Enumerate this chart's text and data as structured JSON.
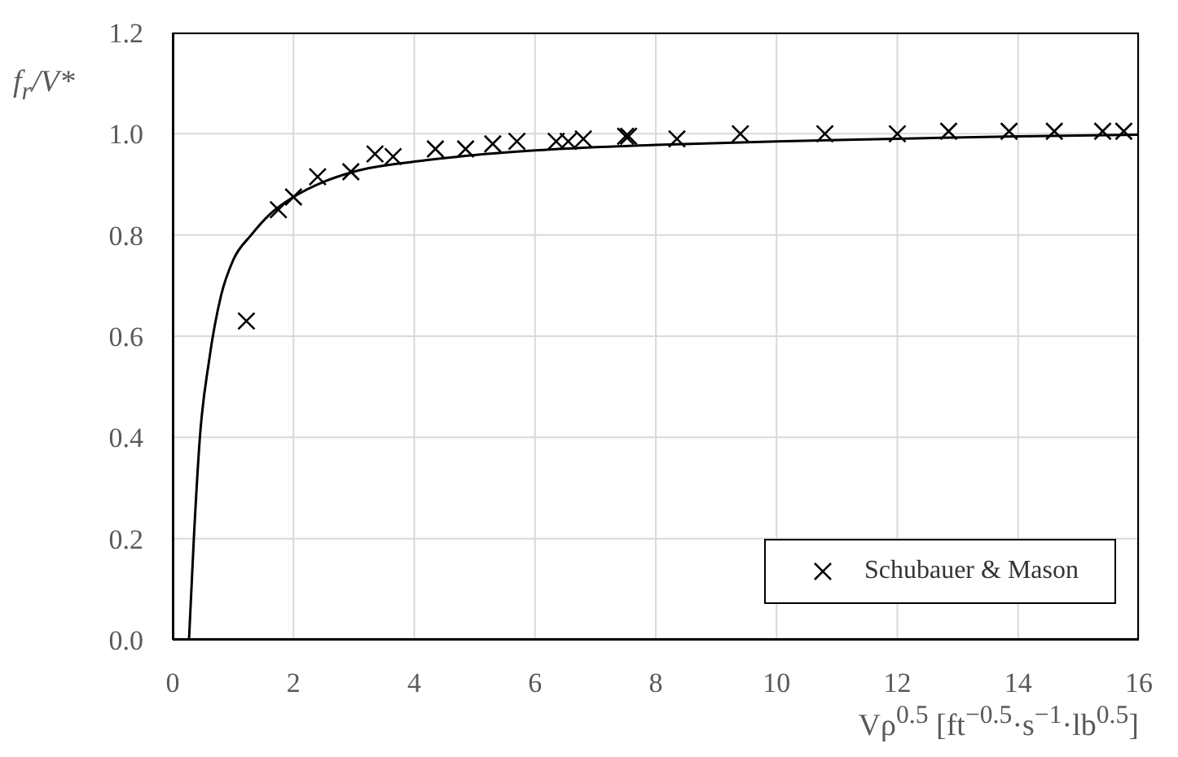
{
  "chart_data": {
    "type": "scatter",
    "xlabel": "Vρ$^{0.5}$ [ft$^{−0.5}$·s$^{−1}$·lb$^{0.5}$]",
    "ylabel": "f$_{r}$/V*",
    "xlim": [
      0,
      16
    ],
    "xticks": [
      0,
      2,
      4,
      6,
      8,
      10,
      12,
      14,
      16
    ],
    "ylim": [
      0,
      1.2
    ],
    "yticks": [
      {
        "value": 0,
        "label": "0.0"
      },
      {
        "value": 0.2,
        "label": "0.2"
      },
      {
        "value": 0.4,
        "label": "0.4"
      },
      {
        "value": 0.6,
        "label": "0.6"
      },
      {
        "value": 0.8,
        "label": "0.8"
      },
      {
        "value": 1,
        "label": "1.0"
      },
      {
        "value": 1.2,
        "label": "1.2"
      }
    ],
    "grid": true,
    "legend": "bottom right",
    "series": [
      {
        "type": "line",
        "color": "#000000",
        "line_style": "solid",
        "marker": "none",
        "x": [
          0.27,
          0.35,
          0.45,
          0.6,
          0.8,
          1.0,
          1.3,
          1.6,
          2,
          2.5,
          3,
          4,
          5,
          6,
          8,
          10,
          12,
          14,
          16
        ],
        "values": [
          0,
          0.2,
          0.4,
          0.55,
          0.68,
          0.75,
          0.8,
          0.84,
          0.875,
          0.905,
          0.925,
          0.945,
          0.958,
          0.967,
          0.978,
          0.985,
          0.99,
          0.995,
          0.998
        ]
      },
      {
        "name": "Schubauer & Mason",
        "color": "#000000",
        "marker": "cross",
        "x": [
          1.22,
          1.75,
          2.0,
          2.4,
          2.95,
          3.35,
          3.65,
          4.35,
          4.85,
          5.3,
          5.7,
          6.35,
          6.55,
          6.8,
          7.5,
          7.55,
          8.35,
          9.4,
          10.8,
          12.0,
          12.85,
          13.85,
          14.6,
          15.4,
          15.75
        ],
        "values": [
          0.63,
          0.85,
          0.875,
          0.915,
          0.925,
          0.96,
          0.955,
          0.97,
          0.97,
          0.98,
          0.985,
          0.985,
          0.985,
          0.99,
          0.995,
          0.995,
          0.99,
          1.0,
          1.0,
          1.0,
          1.005,
          1.005,
          1.005,
          1.005,
          1.005
        ]
      }
    ]
  }
}
